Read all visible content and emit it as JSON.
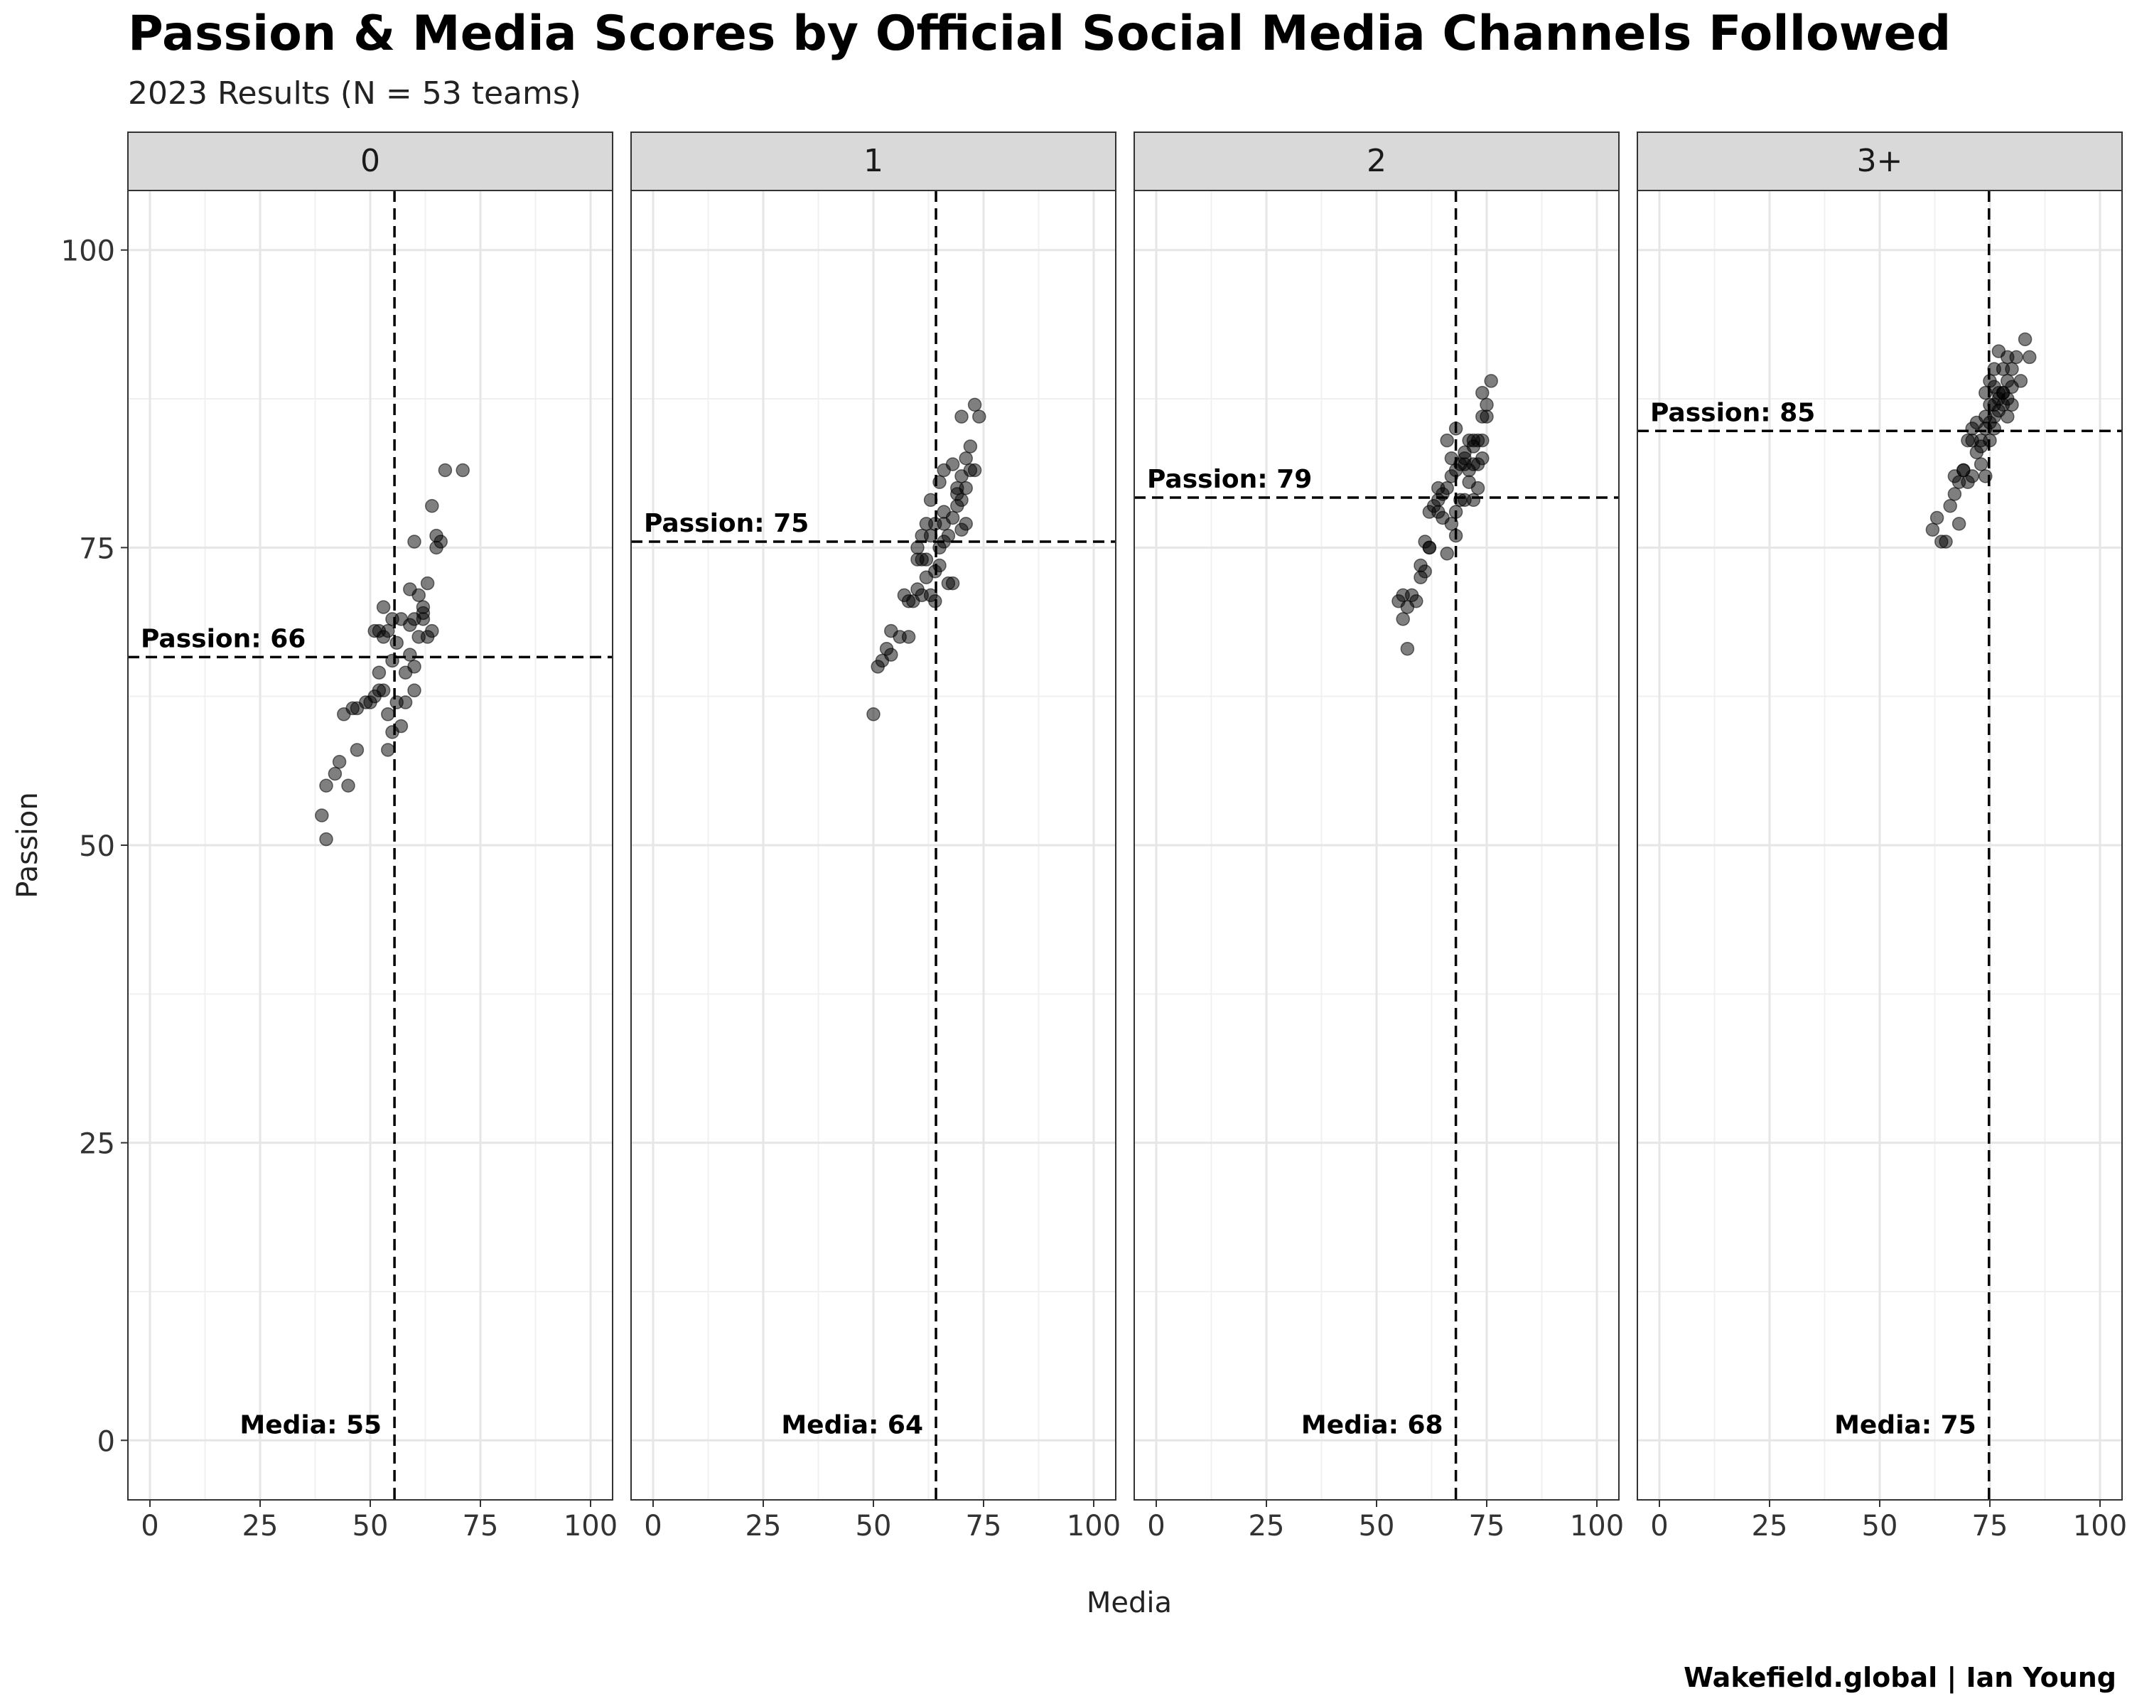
{
  "title": "Passion & Media Scores by Official Social Media Channels Followed",
  "subtitle": "2023 Results (N = 53 teams)",
  "credit": "Wakefield.global | Ian Young",
  "chart_data": {
    "type": "scatter",
    "xlabel": "Media",
    "ylabel": "Passion",
    "xlim": [
      -5,
      105
    ],
    "ylim": [
      -5,
      105
    ],
    "x_ticks": [
      "0",
      "25",
      "50",
      "75",
      "100"
    ],
    "y_ticks": [
      "0",
      "25",
      "50",
      "75",
      "100"
    ],
    "grid": true,
    "panels": [
      {
        "label": "0",
        "mean_media": 55.5,
        "mean_passion": 65.8,
        "passion_label": "Passion: 66",
        "media_label": "Media: 55",
        "points": [
          [
            40,
            50.5
          ],
          [
            39,
            52.5
          ],
          [
            40,
            55
          ],
          [
            42,
            56
          ],
          [
            43,
            57
          ],
          [
            45,
            55
          ],
          [
            47,
            58
          ],
          [
            44,
            61
          ],
          [
            46,
            61.5
          ],
          [
            47,
            61.5
          ],
          [
            49,
            62
          ],
          [
            50,
            62
          ],
          [
            51,
            62.5
          ],
          [
            52,
            63
          ],
          [
            53,
            63
          ],
          [
            52,
            64.5
          ],
          [
            53,
            67.5
          ],
          [
            52,
            68
          ],
          [
            54,
            68
          ],
          [
            56,
            67
          ],
          [
            53,
            70
          ],
          [
            55,
            69
          ],
          [
            57,
            69
          ],
          [
            55,
            65.5
          ],
          [
            54,
            61
          ],
          [
            55,
            59.5
          ],
          [
            54,
            58
          ],
          [
            56,
            62
          ],
          [
            58,
            64.5
          ],
          [
            59,
            66
          ],
          [
            60,
            63
          ],
          [
            60,
            65
          ],
          [
            61,
            67.5
          ],
          [
            59,
            68.5
          ],
          [
            60,
            69
          ],
          [
            61,
            71
          ],
          [
            62,
            69
          ],
          [
            63,
            67.5
          ],
          [
            64,
            68
          ],
          [
            62,
            70
          ],
          [
            63,
            72
          ],
          [
            60,
            75.5
          ],
          [
            64,
            78.5
          ],
          [
            65,
            75
          ],
          [
            66,
            75.5
          ],
          [
            65,
            76
          ],
          [
            67,
            81.5
          ],
          [
            71,
            81.5
          ],
          [
            58,
            62
          ],
          [
            57,
            60
          ],
          [
            51,
            68
          ],
          [
            59,
            71.5
          ],
          [
            62,
            69.5
          ]
        ]
      },
      {
        "label": "1",
        "mean_media": 64.2,
        "mean_passion": 75.5,
        "passion_label": "Passion: 75",
        "media_label": "Media: 64",
        "points": [
          [
            50,
            61
          ],
          [
            51,
            65
          ],
          [
            52,
            65.5
          ],
          [
            53,
            66.5
          ],
          [
            54,
            66
          ],
          [
            54,
            68
          ],
          [
            56,
            67.5
          ],
          [
            57,
            71
          ],
          [
            58,
            70.5
          ],
          [
            59,
            70.5
          ],
          [
            60,
            71.5
          ],
          [
            60,
            75
          ],
          [
            61,
            74
          ],
          [
            61,
            76
          ],
          [
            62,
            72.5
          ],
          [
            63,
            71
          ],
          [
            62,
            74
          ],
          [
            63,
            76
          ],
          [
            62,
            77
          ],
          [
            63,
            79
          ],
          [
            64,
            77
          ],
          [
            64,
            73
          ],
          [
            65,
            73.5
          ],
          [
            65,
            75
          ],
          [
            66,
            75.5
          ],
          [
            66,
            78
          ],
          [
            67,
            76
          ],
          [
            68,
            77.5
          ],
          [
            67,
            72
          ],
          [
            66,
            81.5
          ],
          [
            65,
            80.5
          ],
          [
            68,
            82
          ],
          [
            69,
            80
          ],
          [
            70,
            79
          ],
          [
            69,
            78.5
          ],
          [
            70,
            81
          ],
          [
            71,
            80
          ],
          [
            70,
            76.5
          ],
          [
            71,
            82.5
          ],
          [
            72,
            81.5
          ],
          [
            73,
            81.5
          ],
          [
            72,
            83.5
          ],
          [
            71,
            77
          ],
          [
            70,
            86
          ],
          [
            73,
            87
          ],
          [
            74,
            86
          ],
          [
            68,
            72
          ],
          [
            61,
            71
          ],
          [
            60,
            74
          ],
          [
            64,
            70.5
          ],
          [
            58,
            67.5
          ],
          [
            66,
            77
          ],
          [
            69,
            79.5
          ]
        ]
      },
      {
        "label": "2",
        "mean_media": 68,
        "mean_passion": 79.2,
        "passion_label": "Passion: 79",
        "media_label": "Media: 68",
        "points": [
          [
            57,
            66.5
          ],
          [
            56,
            69
          ],
          [
            55,
            70.5
          ],
          [
            56,
            71
          ],
          [
            57,
            70
          ],
          [
            58,
            71
          ],
          [
            59,
            70.5
          ],
          [
            60,
            73.5
          ],
          [
            61,
            73
          ],
          [
            60,
            72.5
          ],
          [
            61,
            75.5
          ],
          [
            62,
            75
          ],
          [
            62,
            78
          ],
          [
            63,
            78.5
          ],
          [
            64,
            79
          ],
          [
            64,
            80
          ],
          [
            65,
            77.5
          ],
          [
            65,
            79.5
          ],
          [
            66,
            74.5
          ],
          [
            66,
            80
          ],
          [
            67,
            81
          ],
          [
            67,
            77
          ],
          [
            68,
            78
          ],
          [
            68,
            76
          ],
          [
            69,
            79
          ],
          [
            68,
            81.5
          ],
          [
            67,
            82.5
          ],
          [
            66,
            84
          ],
          [
            68,
            85
          ],
          [
            70,
            82
          ],
          [
            70,
            83
          ],
          [
            71,
            80.5
          ],
          [
            71,
            81.5
          ],
          [
            72,
            82
          ],
          [
            72,
            83.5
          ],
          [
            73,
            84
          ],
          [
            73,
            80
          ],
          [
            72,
            79
          ],
          [
            70,
            79
          ],
          [
            74,
            82.5
          ],
          [
            74,
            84
          ],
          [
            74,
            86
          ],
          [
            75,
            86
          ],
          [
            75,
            87
          ],
          [
            76,
            89
          ],
          [
            74,
            88
          ],
          [
            73,
            82
          ],
          [
            71,
            84
          ],
          [
            69,
            82
          ],
          [
            62,
            75
          ],
          [
            64,
            78
          ],
          [
            70,
            82.5
          ],
          [
            72,
            84
          ]
        ]
      },
      {
        "label": "3+",
        "mean_media": 74.8,
        "mean_passion": 84.8,
        "passion_label": "Passion: 85",
        "media_label": "Media: 75",
        "points": [
          [
            62,
            76.5
          ],
          [
            63,
            77.5
          ],
          [
            64,
            75.5
          ],
          [
            65,
            75.5
          ],
          [
            66,
            78.5
          ],
          [
            67,
            79.5
          ],
          [
            67,
            81
          ],
          [
            68,
            80.5
          ],
          [
            69,
            81.5
          ],
          [
            68,
            77
          ],
          [
            70,
            80.5
          ],
          [
            71,
            81
          ],
          [
            70,
            84
          ],
          [
            71,
            85
          ],
          [
            72,
            83
          ],
          [
            72,
            85.5
          ],
          [
            73,
            84
          ],
          [
            73,
            82
          ],
          [
            74,
            81
          ],
          [
            74,
            85
          ],
          [
            75,
            84
          ],
          [
            75,
            85.5
          ],
          [
            76,
            86
          ],
          [
            76,
            87
          ],
          [
            77,
            87.5
          ],
          [
            77,
            86.5
          ],
          [
            78,
            88
          ],
          [
            78,
            87
          ],
          [
            79,
            87.5
          ],
          [
            79,
            86
          ],
          [
            80,
            87
          ],
          [
            80,
            88.5
          ],
          [
            79,
            89
          ],
          [
            78,
            90
          ],
          [
            77,
            88
          ],
          [
            76,
            88.5
          ],
          [
            75,
            89
          ],
          [
            74,
            88
          ],
          [
            76,
            90
          ],
          [
            77,
            91.5
          ],
          [
            79,
            91
          ],
          [
            80,
            90
          ],
          [
            81,
            91
          ],
          [
            82,
            89
          ],
          [
            83,
            92.5
          ],
          [
            84,
            91
          ],
          [
            76,
            85
          ],
          [
            78,
            88
          ],
          [
            75,
            87
          ],
          [
            73,
            83.5
          ],
          [
            71,
            84
          ],
          [
            69,
            81.5
          ],
          [
            74,
            86
          ]
        ]
      }
    ]
  }
}
